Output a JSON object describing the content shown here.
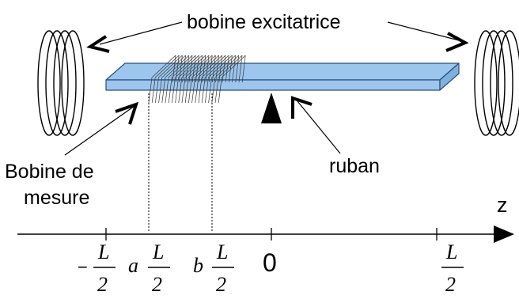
{
  "labels": {
    "excitation_coil": "bobine excitatrice",
    "measure_coil_line1": "Bobine de",
    "measure_coil_line2": "mesure",
    "ribbon": "ruban",
    "axis_name": "z"
  },
  "ticks": {
    "neg_half": {
      "sign": "−",
      "num": "L",
      "den": "2"
    },
    "a": {
      "prefix": "a",
      "num": "L",
      "den": "2"
    },
    "b": {
      "prefix": "b",
      "num": "L",
      "den": "2"
    },
    "zero": "0",
    "pos_half": {
      "num": "L",
      "den": "2"
    }
  },
  "colors": {
    "ribbon_face": "#9cc6ee",
    "ribbon_edge": "#2a4f7a",
    "ink": "#000000"
  }
}
